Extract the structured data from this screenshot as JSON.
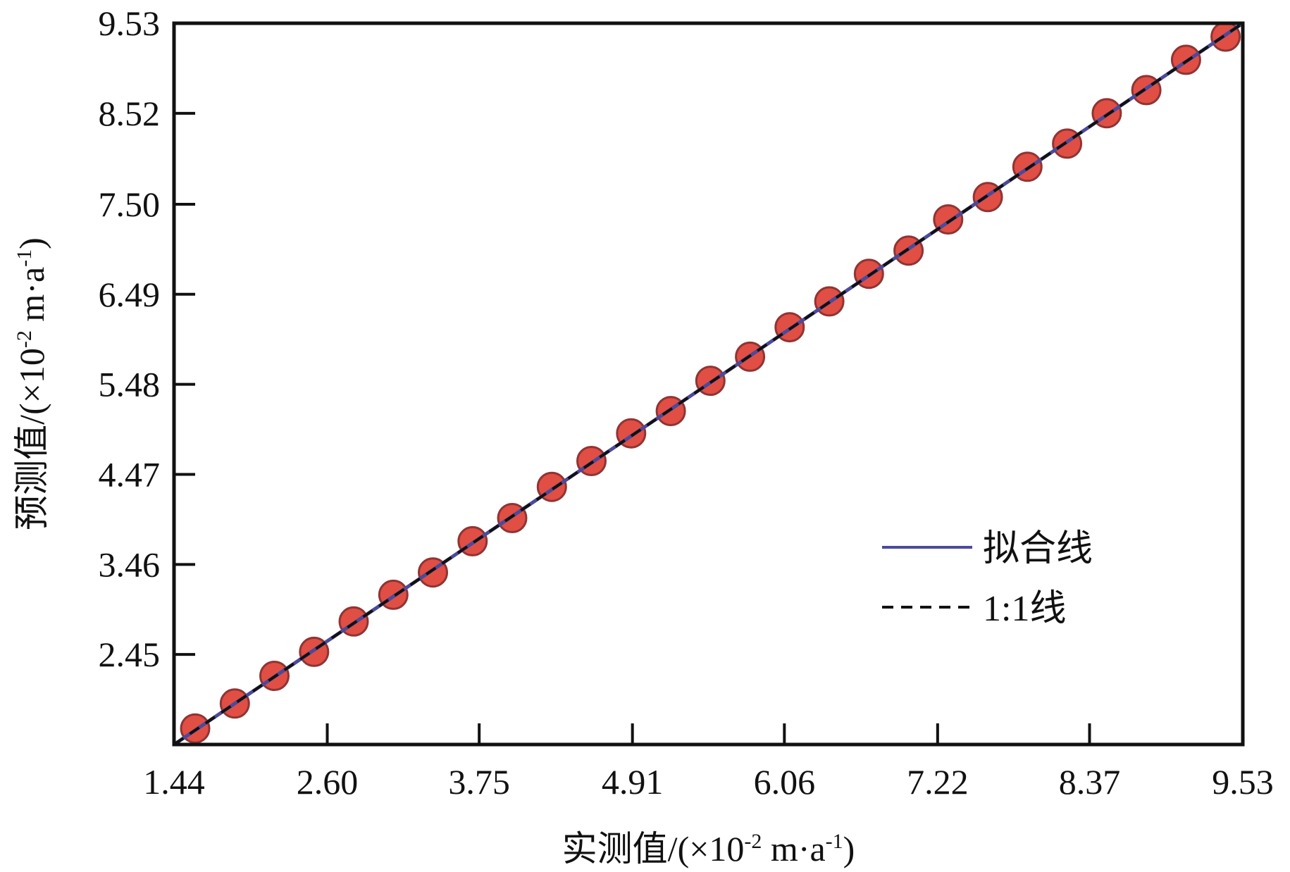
{
  "chart_data": {
    "type": "scatter",
    "xlabel": {
      "prefix": "实测值/(×10",
      "exp1": "-2",
      "middle": " m·a",
      "exp2": "-1",
      "suffix": ")"
    },
    "ylabel": {
      "prefix": "预测值/(×10",
      "exp1": "-2",
      "middle": " m·a",
      "exp2": "-1",
      "suffix": ")"
    },
    "xlim": [
      1.44,
      9.53
    ],
    "ylim": [
      1.44,
      9.53
    ],
    "x_ticks": [
      1.44,
      2.6,
      3.75,
      4.91,
      6.06,
      7.22,
      8.37,
      9.53
    ],
    "x_tick_labels": [
      "1.44",
      "2.60",
      "3.75",
      "4.91",
      "6.06",
      "7.22",
      "8.37",
      "9.53"
    ],
    "y_ticks": [
      2.45,
      3.46,
      4.47,
      5.48,
      6.49,
      7.5,
      8.52,
      9.53
    ],
    "y_tick_labels": [
      "2.45",
      "3.46",
      "4.47",
      "5.48",
      "6.49",
      "7.50",
      "8.52",
      "9.53"
    ],
    "grid": false,
    "legend": {
      "position": "bottom-right",
      "entries": [
        {
          "label": "拟合线",
          "style": "solid",
          "color": "#4b4a9a"
        },
        {
          "label": "1:1线",
          "style": "dashed",
          "color": "#111111"
        }
      ]
    },
    "series": [
      {
        "name": "拟合线",
        "kind": "line",
        "color": "#4b4a9a",
        "x": [
          1.44,
          9.53
        ],
        "y": [
          1.44,
          9.53
        ]
      },
      {
        "name": "1:1线",
        "kind": "line",
        "style": "dashed",
        "color": "#111111",
        "x": [
          1.44,
          9.53
        ],
        "y": [
          1.44,
          9.53
        ]
      },
      {
        "kind": "scatter",
        "color": "#e0453a",
        "outline": "#8a2a2a",
        "x": [
          1.6,
          1.9,
          2.2,
          2.5,
          2.8,
          3.1,
          3.4,
          3.7,
          4.0,
          4.3,
          4.6,
          4.9,
          5.2,
          5.5,
          5.8,
          6.1,
          6.4,
          6.7,
          7.0,
          7.3,
          7.6,
          7.9,
          8.2,
          8.5,
          8.8,
          9.1,
          9.4
        ],
        "y": [
          1.62,
          1.9,
          2.21,
          2.48,
          2.82,
          3.12,
          3.37,
          3.72,
          3.98,
          4.33,
          4.62,
          4.93,
          5.18,
          5.52,
          5.79,
          6.12,
          6.41,
          6.72,
          6.98,
          7.33,
          7.58,
          7.92,
          8.18,
          8.52,
          8.78,
          9.12,
          9.38
        ]
      }
    ]
  }
}
